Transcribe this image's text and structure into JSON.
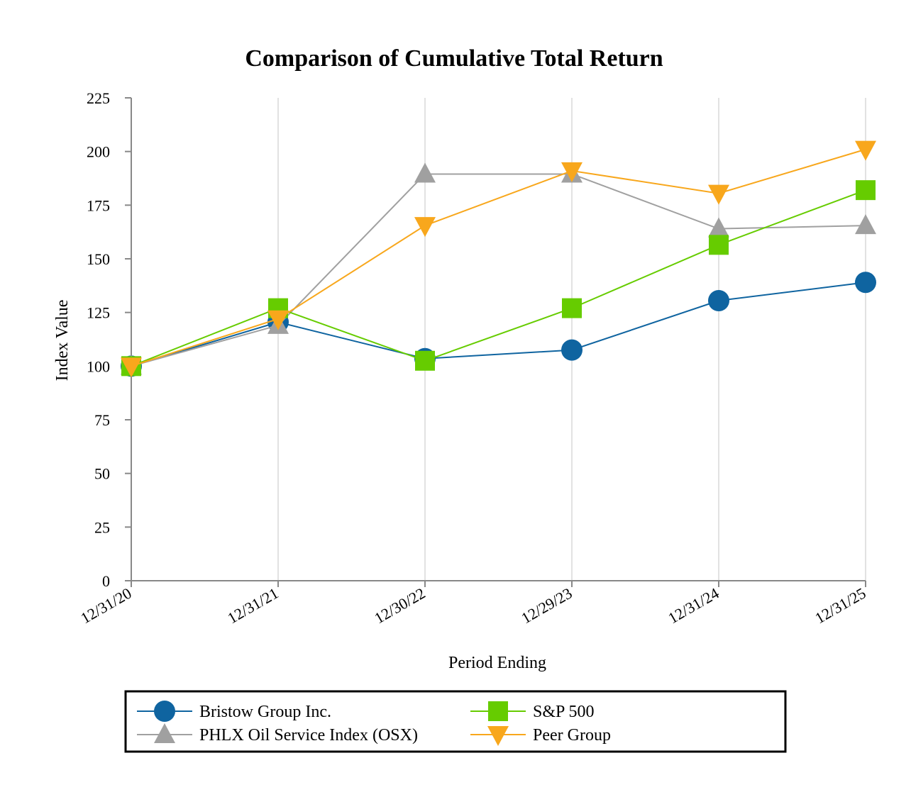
{
  "chart_data": {
    "type": "line",
    "title": "Comparison of Cumulative Total Return",
    "xlabel": "Period Ending",
    "ylabel": "Index Value",
    "categories": [
      "12/31/20",
      "12/31/21",
      "12/30/22",
      "12/29/23",
      "12/31/24",
      "12/31/25"
    ],
    "ylim": [
      0,
      225
    ],
    "yticks": [
      0,
      25,
      50,
      75,
      100,
      125,
      150,
      175,
      200,
      225
    ],
    "grid": "vertical",
    "legend_position": "bottom",
    "series": [
      {
        "name": "Bristow Group Inc.",
        "color": "#0F64A0",
        "marker": "circle",
        "values": [
          100,
          120.5,
          103.5,
          107.5,
          130.5,
          139
        ]
      },
      {
        "name": "S&P 500",
        "color": "#66CC00",
        "marker": "square",
        "values": [
          100,
          127,
          102.5,
          127,
          156.5,
          182
        ]
      },
      {
        "name": "PHLX Oil Service Index (OSX)",
        "color": "#A0A0A0",
        "marker": "triangle-up",
        "values": [
          100,
          119,
          189.5,
          189.5,
          164,
          165.5
        ]
      },
      {
        "name": "Peer Group",
        "color": "#F8A71C",
        "marker": "triangle-down",
        "values": [
          100,
          122,
          165.5,
          191,
          180.5,
          201
        ]
      }
    ]
  }
}
